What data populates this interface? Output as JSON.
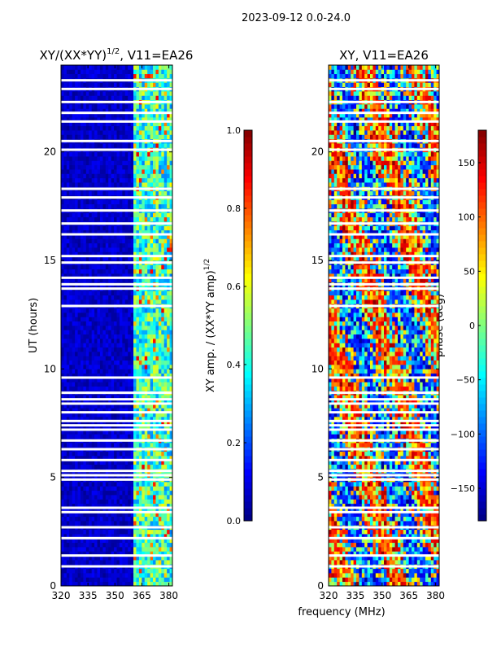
{
  "figure": {
    "suptitle": "2023-09-12 0.0-24.0",
    "xlabel": "frequency (MHz)"
  },
  "chart_data": [
    {
      "type": "heatmap",
      "title_main": "XY/(XX*YY)",
      "title_exp": "1/2",
      "title_rest": ", V11=EA26",
      "xlabel": "",
      "ylabel": "UT (hours)",
      "xlim": [
        320,
        382
      ],
      "ylim": [
        0,
        24
      ],
      "xticks": [
        320,
        335,
        350,
        365,
        380
      ],
      "yticks": [
        0,
        5,
        10,
        15,
        20
      ],
      "rfi_band_mhz": [
        360,
        382
      ],
      "colorbar": {
        "label_main": "XY amp. / (XX*YY amp)",
        "label_exp": "1/2",
        "range": [
          0.0,
          1.0
        ],
        "ticks": [
          "0.0",
          "0.2",
          "0.4",
          "0.6",
          "0.8",
          "1.0"
        ],
        "colormap": "jet"
      },
      "blank_rows_hours": [
        0.9,
        1.4,
        2.2,
        2.7,
        3.4,
        3.6,
        4.9,
        5.1,
        5.3,
        5.8,
        6.3,
        6.7,
        7.2,
        7.4,
        7.6,
        8.0,
        8.4,
        8.6,
        8.9,
        9.6,
        12.9,
        13.7,
        13.9,
        14.2,
        14.9,
        15.2,
        16.2,
        16.7,
        17.3,
        17.9,
        18.3,
        20.1,
        20.5,
        21.4,
        21.8,
        22.3,
        22.9,
        23.3
      ]
    },
    {
      "type": "heatmap",
      "title_main": "XY, V11=EA26",
      "title_exp": "",
      "title_rest": "",
      "xlabel": "frequency (MHz)",
      "ylabel": "",
      "xlim": [
        320,
        382
      ],
      "ylim": [
        0,
        24
      ],
      "xticks": [
        320,
        335,
        350,
        365,
        380
      ],
      "yticks": [
        0,
        5,
        10,
        15,
        20
      ],
      "colorbar": {
        "label_main": "phase (deg)",
        "label_exp": "",
        "range": [
          -180,
          180
        ],
        "ticks": [
          "−150",
          "−100",
          "−50",
          "0",
          "50",
          "100",
          "150"
        ],
        "tick_values": [
          -150,
          -100,
          -50,
          0,
          50,
          100,
          150
        ],
        "colormap": "jet"
      },
      "blank_rows_hours": [
        0.9,
        1.4,
        2.2,
        2.7,
        3.4,
        3.6,
        4.9,
        5.1,
        5.3,
        5.8,
        6.3,
        6.7,
        7.2,
        7.4,
        7.6,
        8.0,
        8.4,
        8.6,
        8.9,
        9.6,
        12.9,
        13.7,
        13.9,
        14.2,
        14.9,
        15.2,
        16.2,
        16.7,
        17.3,
        17.9,
        18.3,
        20.1,
        20.5,
        21.4,
        21.8,
        22.3,
        22.9,
        23.3
      ]
    }
  ]
}
